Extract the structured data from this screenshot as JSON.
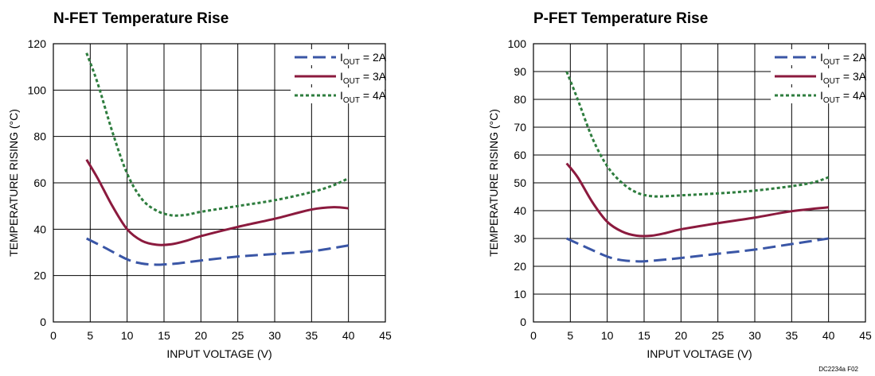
{
  "footnote": "DC2234a F02",
  "chart_data": [
    {
      "type": "line",
      "title": "N-FET Temperature Rise",
      "xlabel": "INPUT VOLTAGE (V)",
      "ylabel": "TEMPERATURE RISING (°C)",
      "xlim": [
        0,
        45
      ],
      "ylim": [
        0,
        120
      ],
      "xticks": [
        0,
        5,
        10,
        15,
        20,
        25,
        30,
        35,
        40,
        45
      ],
      "yticks": [
        0,
        20,
        40,
        60,
        80,
        100,
        120
      ],
      "grid": true,
      "legend_position": "top-right",
      "series": [
        {
          "name": "IOUT = 2A",
          "legend": {
            "prefix": "I",
            "sub": "OUT",
            "suffix": " = 2A"
          },
          "color": "#3a56a6",
          "style": "dashed",
          "x": [
            4.5,
            7,
            10,
            12,
            14,
            15,
            17,
            20,
            25,
            30,
            35,
            40
          ],
          "y": [
            36,
            32,
            27,
            25.2,
            24.7,
            24.8,
            25.3,
            26.5,
            28.2,
            29.3,
            30.5,
            33
          ]
        },
        {
          "name": "IOUT = 3A",
          "legend": {
            "prefix": "I",
            "sub": "OUT",
            "suffix": " = 3A"
          },
          "color": "#8b1a3e",
          "style": "solid",
          "x": [
            4.5,
            6,
            8,
            10,
            12,
            14,
            16,
            18,
            20,
            25,
            30,
            35,
            38,
            40
          ],
          "y": [
            70,
            62,
            50,
            40,
            35,
            33.3,
            33.5,
            35,
            37,
            41,
            44.5,
            48.5,
            49.5,
            49
          ]
        },
        {
          "name": "IOUT = 4A",
          "legend": {
            "prefix": "I",
            "sub": "OUT",
            "suffix": " = 4A"
          },
          "color": "#2e7d3e",
          "style": "dotted",
          "x": [
            4.5,
            6,
            8,
            10,
            12,
            14,
            16,
            18,
            20,
            25,
            30,
            35,
            38,
            40
          ],
          "y": [
            116,
            103,
            82,
            64,
            53,
            48,
            46,
            46.2,
            47.5,
            50,
            52.5,
            56,
            59,
            62
          ]
        }
      ]
    },
    {
      "type": "line",
      "title": "P-FET Temperature Rise",
      "xlabel": "INPUT VOLTAGE (V)",
      "ylabel": "TEMPERATURE RISING (°C)",
      "xlim": [
        0,
        45
      ],
      "ylim": [
        0,
        100
      ],
      "xticks": [
        0,
        5,
        10,
        15,
        20,
        25,
        30,
        35,
        40,
        45
      ],
      "yticks": [
        0,
        10,
        20,
        30,
        40,
        50,
        60,
        70,
        80,
        90,
        100
      ],
      "grid": true,
      "legend_position": "top-right",
      "series": [
        {
          "name": "IOUT = 2A",
          "legend": {
            "prefix": "I",
            "sub": "OUT",
            "suffix": " = 2A"
          },
          "color": "#3a56a6",
          "style": "dashed",
          "x": [
            4.5,
            7,
            10,
            12,
            14,
            15,
            17,
            20,
            25,
            30,
            35,
            40
          ],
          "y": [
            30,
            27,
            23.5,
            22.2,
            21.8,
            21.8,
            22.2,
            23,
            24.5,
            26,
            28,
            30
          ]
        },
        {
          "name": "IOUT = 3A",
          "legend": {
            "prefix": "I",
            "sub": "OUT",
            "suffix": " = 3A"
          },
          "color": "#8b1a3e",
          "style": "solid",
          "x": [
            4.5,
            6,
            8,
            10,
            12,
            14,
            16,
            18,
            20,
            25,
            30,
            35,
            40
          ],
          "y": [
            57,
            52,
            43,
            36,
            32.5,
            31,
            31,
            32,
            33.3,
            35.5,
            37.5,
            39.8,
            41.2
          ]
        },
        {
          "name": "IOUT = 4A",
          "legend": {
            "prefix": "I",
            "sub": "OUT",
            "suffix": " = 4A"
          },
          "color": "#2e7d3e",
          "style": "dotted",
          "x": [
            4.5,
            6,
            8,
            10,
            12,
            14,
            16,
            18,
            20,
            25,
            30,
            35,
            38,
            40
          ],
          "y": [
            90,
            80,
            66,
            56,
            50,
            46.5,
            45.2,
            45.2,
            45.5,
            46.2,
            47.2,
            48.8,
            50.2,
            52
          ]
        }
      ]
    }
  ]
}
